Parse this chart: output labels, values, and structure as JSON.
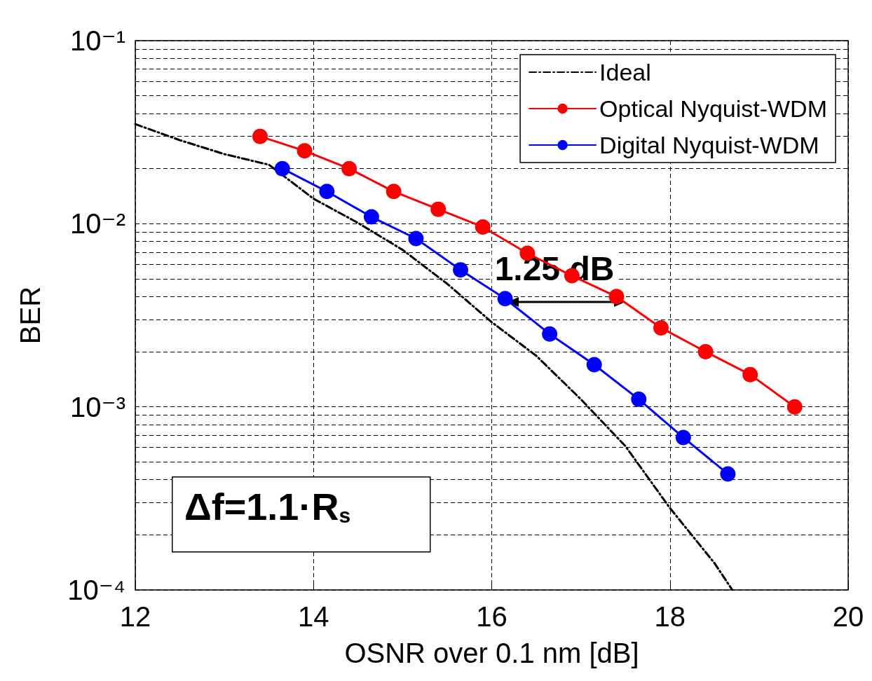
{
  "chart_data": {
    "type": "line",
    "xlabel": "OSNR over 0.1 nm [dB]",
    "ylabel": "BER",
    "log": "y",
    "grid": true,
    "legend": "top right",
    "marker": "circle",
    "line_style": "solid",
    "xlim": [
      12,
      20
    ],
    "xticks": [
      12,
      14,
      16,
      18,
      20
    ],
    "ylim": [
      0.0001,
      0.1
    ],
    "yticks": [
      {
        "value": 0.0001,
        "label": "10⁻⁴"
      },
      {
        "value": 0.0002,
        "label": null
      },
      {
        "value": 0.0003,
        "label": null
      },
      {
        "value": 0.0004,
        "label": null
      },
      {
        "value": 0.0005,
        "label": null
      },
      {
        "value": 0.0006,
        "label": null
      },
      {
        "value": 0.0007,
        "label": null
      },
      {
        "value": 0.0008,
        "label": null
      },
      {
        "value": 0.0009,
        "label": null
      },
      {
        "value": 0.001,
        "label": "10⁻³"
      },
      {
        "value": 0.002,
        "label": null
      },
      {
        "value": 0.003,
        "label": null
      },
      {
        "value": 0.004,
        "label": null
      },
      {
        "value": 0.005,
        "label": null
      },
      {
        "value": 0.006,
        "label": null
      },
      {
        "value": 0.007,
        "label": null
      },
      {
        "value": 0.008,
        "label": null
      },
      {
        "value": 0.009,
        "label": null
      },
      {
        "value": 0.01,
        "label": "10⁻²"
      },
      {
        "value": 0.02,
        "label": null
      },
      {
        "value": 0.03,
        "label": null
      },
      {
        "value": 0.04,
        "label": null
      },
      {
        "value": 0.05,
        "label": null
      },
      {
        "value": 0.06,
        "label": null
      },
      {
        "value": 0.07,
        "label": null
      },
      {
        "value": 0.08,
        "label": null
      },
      {
        "value": 0.09,
        "label": null
      },
      {
        "value": 0.1,
        "label": "10⁻¹"
      }
    ],
    "series": [
      {
        "name": "Ideal",
        "color": "#000000",
        "marker": "none",
        "line_style": "dashed",
        "x": [
          12,
          12.5,
          13,
          13.5,
          14,
          14.5,
          15,
          15.5,
          16,
          16.5,
          17,
          17.5,
          18,
          18.5,
          18.7
        ],
        "values": [
          0.035,
          0.0286,
          0.024,
          0.021,
          0.0137,
          0.0101,
          0.0072,
          0.0047,
          0.0029,
          0.0019,
          0.0011,
          0.00061,
          0.00028,
          0.00014,
          0.0001
        ]
      },
      {
        "name": "Optical Nyquist-WDM",
        "color": "#ff0000",
        "x": [
          13.4,
          13.9,
          14.4,
          14.9,
          15.4,
          15.9,
          16.4,
          16.9,
          17.4,
          17.9,
          18.4,
          18.9,
          19.4
        ],
        "values": [
          0.03,
          0.025,
          0.02,
          0.015,
          0.012,
          0.0096,
          0.0069,
          0.0052,
          0.004,
          0.0027,
          0.002,
          0.0015,
          0.001
        ]
      },
      {
        "name": "Digital Nyquist-WDM",
        "color": "#0000ff",
        "x": [
          13.65,
          14.15,
          14.65,
          15.15,
          15.65,
          16.15,
          16.65,
          17.15,
          17.65,
          18.15,
          18.65
        ],
        "values": [
          0.02,
          0.015,
          0.0109,
          0.0083,
          0.0056,
          0.0039,
          0.0025,
          0.0017,
          0.0011,
          0.00068,
          0.00043
        ]
      }
    ],
    "annotations": [
      "1.25 dB",
      "Δf=1.1·R$_{s}$"
    ]
  }
}
